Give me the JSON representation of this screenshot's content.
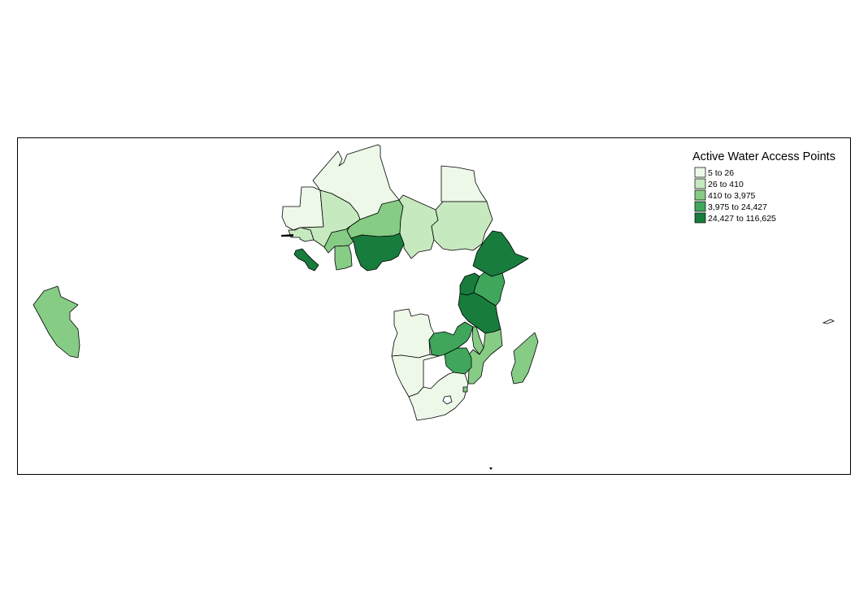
{
  "map": {
    "legend": {
      "title": "Active Water Access Points",
      "classes": [
        {
          "label": "5 to 26",
          "color": "#edf8e9"
        },
        {
          "label": "26 to 410",
          "color": "#c7e9c0"
        },
        {
          "label": "410 to 3,975",
          "color": "#86cc85"
        },
        {
          "label": "3,975 to 24,427",
          "color": "#3fa65b"
        },
        {
          "label": "24,427 to 116,625",
          "color": "#187c3d"
        }
      ]
    },
    "regions": [
      {
        "name": "Algeria",
        "class": 0
      },
      {
        "name": "Mauritania",
        "class": 0
      },
      {
        "name": "Egypt",
        "class": 0
      },
      {
        "name": "Angola",
        "class": 0
      },
      {
        "name": "Namibia",
        "class": 0
      },
      {
        "name": "South Africa",
        "class": 0
      },
      {
        "name": "Mali",
        "class": 1
      },
      {
        "name": "Chad",
        "class": 1
      },
      {
        "name": "Sudan",
        "class": 1
      },
      {
        "name": "Senegal",
        "class": 1
      },
      {
        "name": "Burkina Faso",
        "class": 2
      },
      {
        "name": "Niger",
        "class": 2
      },
      {
        "name": "Ghana",
        "class": 2
      },
      {
        "name": "Peru",
        "class": 2
      },
      {
        "name": "Madagascar",
        "class": 2
      },
      {
        "name": "Mozambique",
        "class": 2
      },
      {
        "name": "Malawi",
        "class": 2
      },
      {
        "name": "Kenya",
        "class": 3
      },
      {
        "name": "Zambia",
        "class": 3
      },
      {
        "name": "Zimbabwe",
        "class": 3
      },
      {
        "name": "Nigeria",
        "class": 4
      },
      {
        "name": "Sierra Leone",
        "class": 4
      },
      {
        "name": "Ethiopia",
        "class": 4
      },
      {
        "name": "Uganda",
        "class": 4
      },
      {
        "name": "Tanzania",
        "class": 4
      }
    ]
  }
}
